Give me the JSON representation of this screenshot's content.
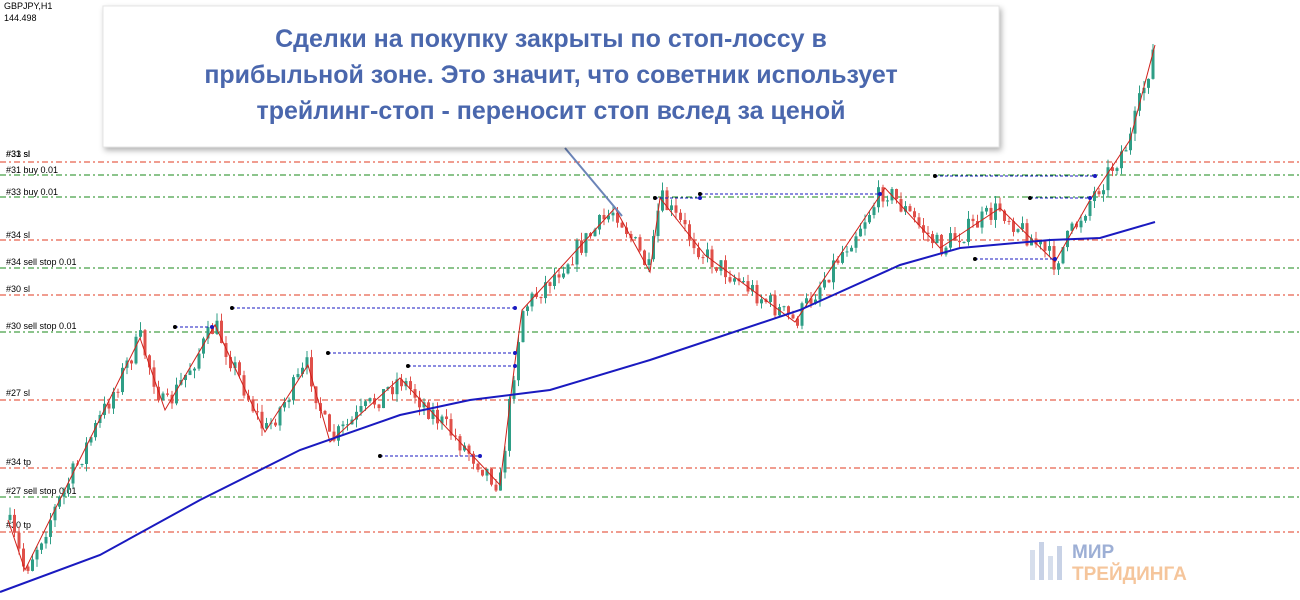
{
  "symbol": "GBPJPY,H1",
  "price": "144.498",
  "callout": {
    "lines": [
      "Сделки на покупку закрыты по стоп-лоссу в",
      "прибыльной зоне. Это значит, что советник использует",
      "трейлинг-стоп - переносит стоп вслед за ценой"
    ]
  },
  "orders": [
    "#31 sl",
    "#33 sl",
    "#31 buy 0.01",
    "#33 buy 0.01",
    "#34 sl",
    "#34 sell stop 0.01",
    "#30 sl",
    "#30 sell stop 0.01",
    "#27 sl",
    "#34 tp",
    "#27 sell stop 0.01",
    "#30 tp"
  ],
  "logo": {
    "top": "МИР",
    "bottom": "ТРЕЙДИНГА"
  }
}
